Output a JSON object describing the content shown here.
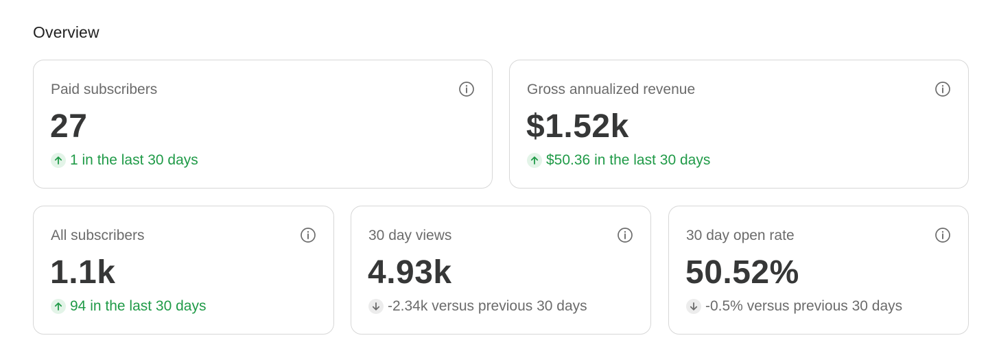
{
  "overview": {
    "title": "Overview",
    "cards": [
      {
        "label": "Paid subscribers",
        "value": "27",
        "delta": "1 in the last 30 days",
        "trend": "up",
        "icon": "info-icon"
      },
      {
        "label": "Gross annualized revenue",
        "value": "$1.52k",
        "delta": "$50.36 in the last 30 days",
        "trend": "up",
        "icon": "info-icon"
      },
      {
        "label": "All subscribers",
        "value": "1.1k",
        "delta": "94 in the last 30 days",
        "trend": "up",
        "icon": "info-icon"
      },
      {
        "label": "30 day views",
        "value": "4.93k",
        "delta": "-2.34k versus previous 30 days",
        "trend": "down",
        "icon": "info-icon"
      },
      {
        "label": "30 day open rate",
        "value": "50.52%",
        "delta": "-0.5% versus previous 30 days",
        "trend": "down",
        "icon": "info-icon"
      }
    ]
  },
  "colors": {
    "positive": "#1f9a47",
    "neutral": "#6b6b6b",
    "value": "#363737",
    "border": "#d7d7d7"
  }
}
